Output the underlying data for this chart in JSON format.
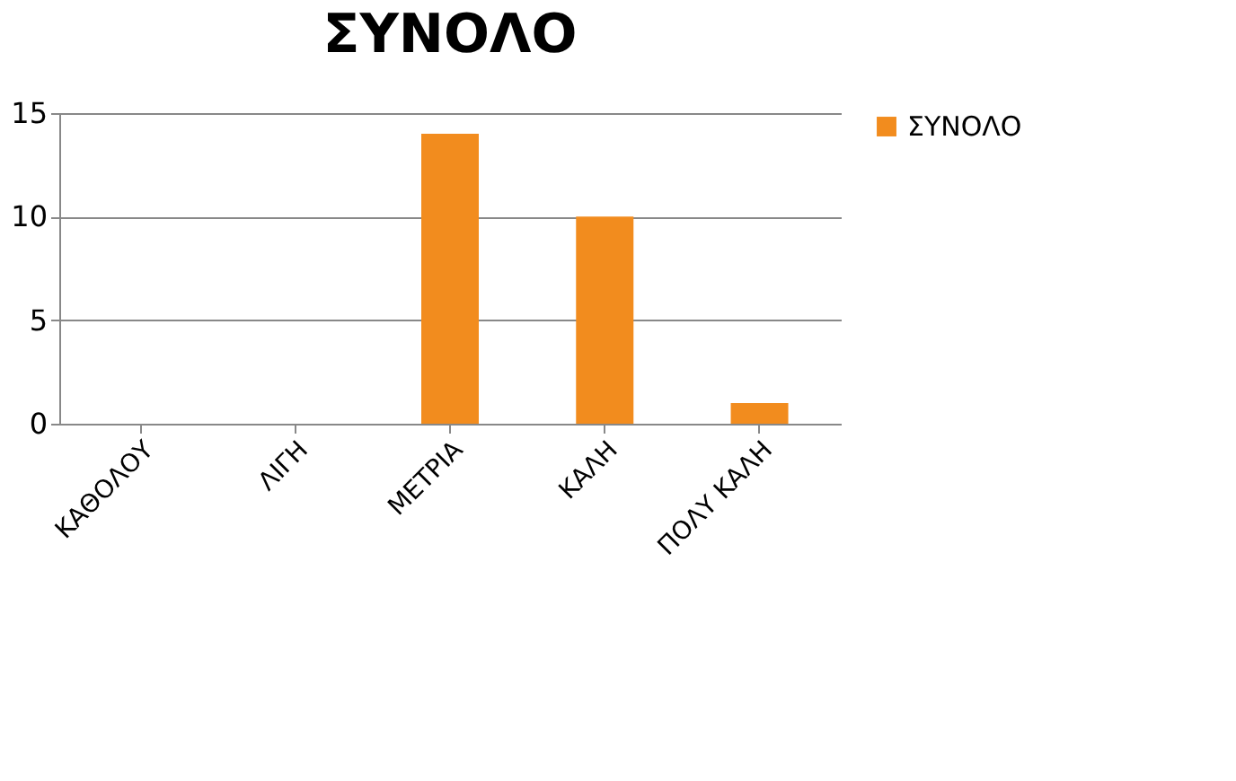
{
  "chart_data": {
    "type": "bar",
    "title": "ΣΥΝΟΛΟ",
    "categories": [
      "ΚΑΘΟΛΟΥ",
      "ΛΙΓΗ",
      "ΜΕΤΡΙΑ",
      "ΚΑΛΗ",
      "ΠΟΛΥ ΚΑΛΗ"
    ],
    "series": [
      {
        "name": "ΣΥΝΟΛΟ",
        "color": "#f28c1e",
        "values": [
          0,
          0,
          14,
          10,
          1
        ]
      }
    ],
    "ylim": [
      0,
      15
    ],
    "yticks": [
      0,
      5,
      10,
      15
    ],
    "grid": "y",
    "legend": "right"
  }
}
